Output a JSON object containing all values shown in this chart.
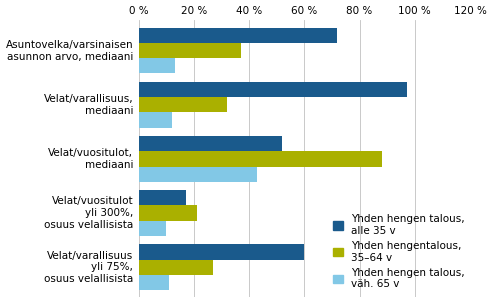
{
  "categories": [
    "Asuntovelka/varsinaisen\nasunnon arvo, mediaani",
    "Velat/varallisuus,\nmediaani",
    "Velat/vuositulot,\nmediaani",
    "Velat/vuositulot\nyli 300%,\nosuus velallisista",
    "Velat/varallisuus\nyli 75%,\nosuus velallisista"
  ],
  "series": [
    {
      "name": "Yhden hengen talous,\nalle 35 v",
      "color": "#1a5a8c",
      "values": [
        72,
        97,
        52,
        17,
        60
      ]
    },
    {
      "name": "Yhden hengentalous,\n35–64 v",
      "color": "#aab000",
      "values": [
        37,
        32,
        88,
        21,
        27
      ]
    },
    {
      "name": "Yhden hengen talous,\nväh. 65 v",
      "color": "#82c8e6",
      "values": [
        13,
        12,
        43,
        10,
        11
      ]
    }
  ],
  "xlim": [
    0,
    120
  ],
  "xticks": [
    0,
    20,
    40,
    60,
    80,
    100,
    120
  ],
  "xtick_labels": [
    "0 %",
    "20 %",
    "40 %",
    "60 %",
    "80 %",
    "100 %",
    "120 %"
  ],
  "bar_height": 0.28,
  "legend_labels": [
    "Yhden hengen talous,\nalle 35 v",
    "Yhden hengentalous,\n35–64 v",
    "Yhden hengen talous,\nväh. 65 v"
  ],
  "legend_colors": [
    "#1a5a8c",
    "#aab000",
    "#82c8e6"
  ],
  "background_color": "#ffffff",
  "tick_fontsize": 7.5,
  "label_fontsize": 7.5,
  "legend_fontsize": 7.5
}
